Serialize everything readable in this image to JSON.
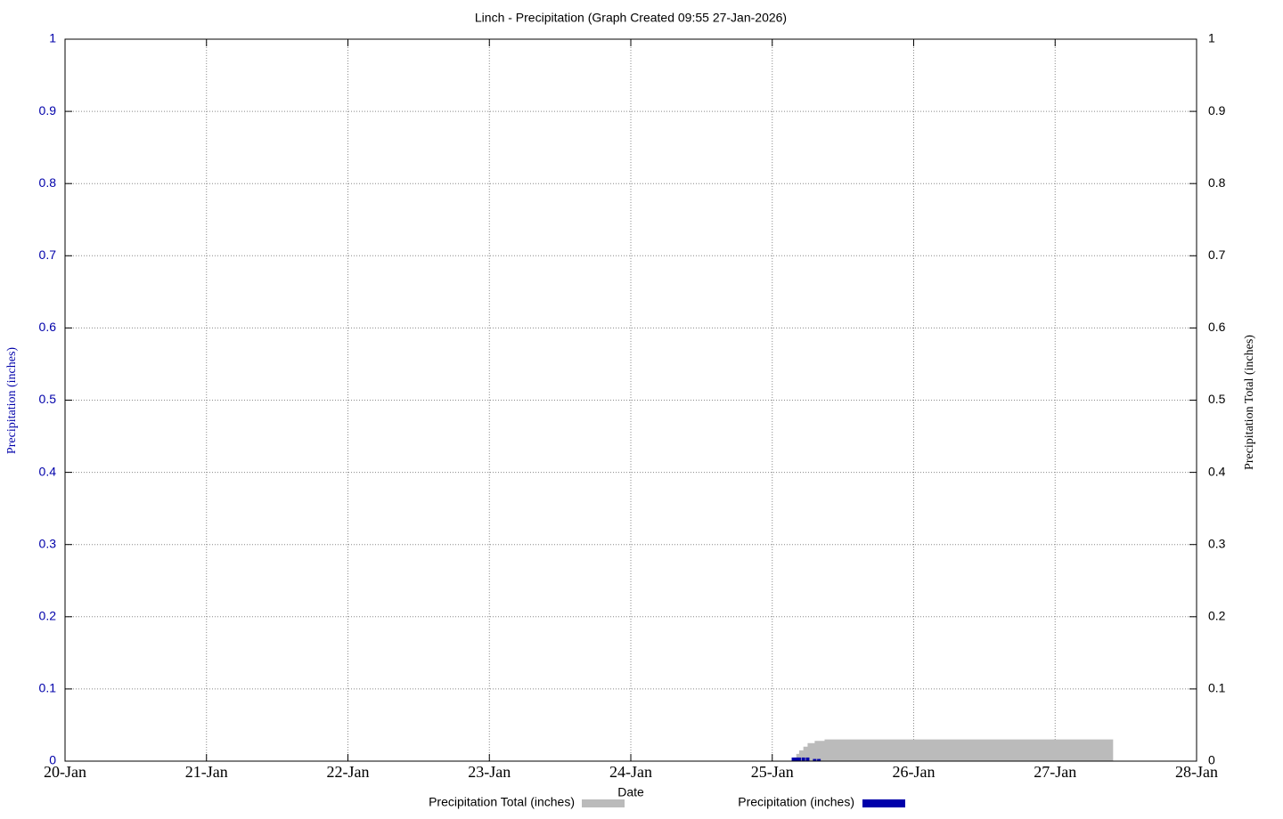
{
  "chart_data": {
    "type": "line",
    "title": "Linch - Precipitation (Graph Created 09:55 27-Jan-2026)",
    "x_label": "Date",
    "y_label": "Precipitation (inches)",
    "y2_label": "Precipitation Total (inches)",
    "xlim": [
      20,
      28
    ],
    "xticks": [
      {
        "value": 20,
        "label": "20-Jan"
      },
      {
        "value": 21,
        "label": "21-Jan"
      },
      {
        "value": 22,
        "label": "22-Jan"
      },
      {
        "value": 23,
        "label": "23-Jan"
      },
      {
        "value": 24,
        "label": "24-Jan"
      },
      {
        "value": 25,
        "label": "25-Jan"
      },
      {
        "value": 26,
        "label": "26-Jan"
      },
      {
        "value": 27,
        "label": "27-Jan"
      },
      {
        "value": 28,
        "label": "28-Jan"
      }
    ],
    "ylim": [
      0,
      1
    ],
    "yticks": [
      0,
      0.1,
      0.2,
      0.3,
      0.4,
      0.5,
      0.6,
      0.7,
      0.8,
      0.9,
      1
    ],
    "y2lim": [
      0,
      1
    ],
    "y2ticks": [
      0,
      0.1,
      0.2,
      0.3,
      0.4,
      0.5,
      0.6,
      0.7,
      0.8,
      0.9,
      1
    ],
    "grid": true,
    "series": [
      {
        "name": "Precipitation Total (inches)",
        "color": "#bbbbbb",
        "style": "step-area",
        "axis": "y2",
        "x": [
          25.15,
          25.17,
          25.19,
          25.22,
          25.25,
          25.3,
          25.37,
          27.41
        ],
        "values": [
          0.005,
          0.01,
          0.015,
          0.02,
          0.025,
          0.028,
          0.03,
          0.03
        ]
      },
      {
        "name": "Precipitation (inches)",
        "color": "#0000aa",
        "style": "impulse",
        "x": [
          25.15,
          25.17,
          25.19,
          25.22,
          25.25,
          25.3,
          25.33
        ],
        "values": [
          0.005,
          0.005,
          0.005,
          0.005,
          0.005,
          0.003,
          0.003
        ]
      }
    ]
  }
}
